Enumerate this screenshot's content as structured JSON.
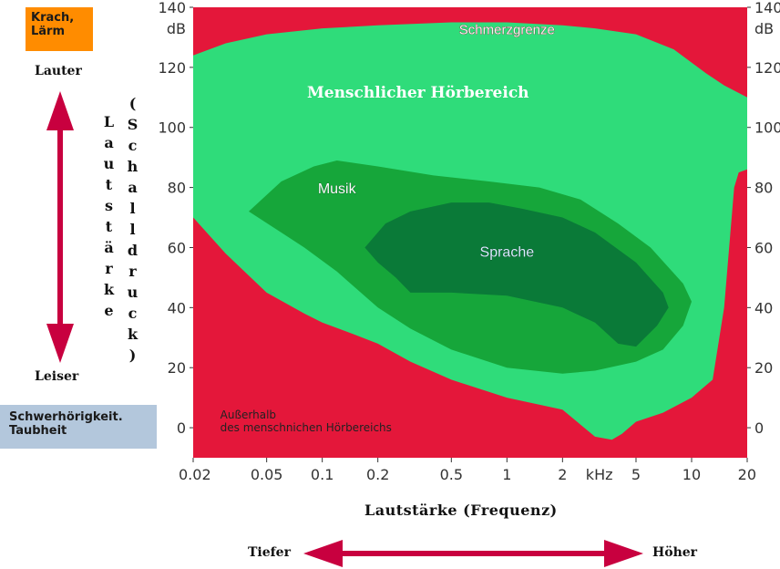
{
  "legend": {
    "top_tag": "Krach,\nLärm",
    "louder": "Lauter",
    "softer": "Leiser",
    "bottom_tag": "Schwerhörigkeit.\nTaubheit",
    "vertical_a": "Lautstärke",
    "vertical_b": "(Schalldruck)",
    "lower": "Tiefer",
    "higher": "Höher",
    "x_title": "Lautstärke (Frequenz)"
  },
  "colors": {
    "pain": "#e4173a",
    "hearing": "#2fdc7a",
    "music": "#16a63a",
    "speech": "#0a7a38",
    "outside": "#c9c9e3",
    "tag_orange": "#ff8c00",
    "tag_blue": "#b3c7dc",
    "arrow": "#c8003f"
  },
  "chart_data": {
    "type": "area",
    "x_scale": "log",
    "xlim": [
      0.02,
      20
    ],
    "ylim": [
      -10,
      140
    ],
    "y_unit": "dB",
    "x_unit": "kHz",
    "x_ticks": [
      "0.02",
      "0.05",
      "0.1",
      "0.2",
      "0.5",
      "1",
      "2",
      "5",
      "10",
      "20"
    ],
    "x_tick_values": [
      0.02,
      0.05,
      0.1,
      0.2,
      0.5,
      1,
      2,
      5,
      10,
      20
    ],
    "y_ticks": [
      0,
      20,
      40,
      60,
      80,
      100,
      120,
      140
    ],
    "regions": [
      {
        "name": "Schmerzgrenze",
        "label": "Schmerzgrenze",
        "label_at": [
          1,
          131
        ],
        "lower_boundary": [
          [
            0.02,
            124
          ],
          [
            0.03,
            128
          ],
          [
            0.05,
            131
          ],
          [
            0.1,
            133
          ],
          [
            0.2,
            134
          ],
          [
            0.5,
            135
          ],
          [
            1,
            135
          ],
          [
            2,
            134
          ],
          [
            3,
            133
          ],
          [
            5,
            131
          ],
          [
            8,
            126
          ],
          [
            12,
            118
          ],
          [
            15,
            114
          ],
          [
            20,
            110
          ]
        ]
      },
      {
        "name": "Menschlicher Hörbereich",
        "label": "Menschlicher Hörbereich",
        "label_at": [
          0.33,
          110
        ],
        "threshold_boundary": [
          [
            0.02,
            70
          ],
          [
            0.03,
            58
          ],
          [
            0.05,
            45
          ],
          [
            0.08,
            38
          ],
          [
            0.1,
            35
          ],
          [
            0.15,
            31
          ],
          [
            0.2,
            28
          ],
          [
            0.3,
            22
          ],
          [
            0.5,
            16
          ],
          [
            1,
            10
          ],
          [
            2,
            6
          ],
          [
            3,
            -3
          ],
          [
            3.7,
            -4
          ],
          [
            4.2,
            -2
          ],
          [
            5,
            2
          ],
          [
            7,
            5
          ],
          [
            10,
            10
          ],
          [
            13,
            16
          ],
          [
            15,
            40
          ],
          [
            17,
            80
          ],
          [
            18,
            85
          ],
          [
            20,
            86
          ]
        ]
      },
      {
        "name": "Musik",
        "label": "Musik",
        "label_at": [
          0.12,
          78
        ],
        "outline": [
          [
            0.04,
            72
          ],
          [
            0.06,
            82
          ],
          [
            0.09,
            87
          ],
          [
            0.12,
            89
          ],
          [
            0.2,
            87
          ],
          [
            0.4,
            84
          ],
          [
            0.8,
            82
          ],
          [
            1.5,
            80
          ],
          [
            2.5,
            76
          ],
          [
            4,
            68
          ],
          [
            6,
            60
          ],
          [
            9,
            48
          ],
          [
            10,
            42
          ],
          [
            9,
            34
          ],
          [
            7,
            26
          ],
          [
            5,
            22
          ],
          [
            3,
            19
          ],
          [
            2,
            18
          ],
          [
            1,
            20
          ],
          [
            0.5,
            26
          ],
          [
            0.3,
            33
          ],
          [
            0.2,
            40
          ],
          [
            0.12,
            52
          ],
          [
            0.08,
            60
          ],
          [
            0.06,
            65
          ],
          [
            0.04,
            72
          ]
        ]
      },
      {
        "name": "Sprache",
        "label": "Sprache",
        "label_at": [
          1,
          57
        ],
        "outline": [
          [
            0.17,
            60
          ],
          [
            0.22,
            68
          ],
          [
            0.3,
            72
          ],
          [
            0.5,
            75
          ],
          [
            0.8,
            75
          ],
          [
            1.2,
            73
          ],
          [
            2,
            70
          ],
          [
            3,
            65
          ],
          [
            5,
            55
          ],
          [
            7,
            45
          ],
          [
            7.5,
            40
          ],
          [
            6.5,
            34
          ],
          [
            5,
            27
          ],
          [
            4,
            28
          ],
          [
            3,
            35
          ],
          [
            2,
            40
          ],
          [
            1,
            44
          ],
          [
            0.5,
            45
          ],
          [
            0.3,
            45
          ],
          [
            0.25,
            50
          ],
          [
            0.2,
            55
          ],
          [
            0.17,
            60
          ]
        ]
      },
      {
        "name": "Außerhalb des menschnichen Hörbereichs",
        "label": "Außerhalb\ndes menschnichen Hörbereichs",
        "label_at": [
          0.025,
          3
        ]
      }
    ]
  }
}
